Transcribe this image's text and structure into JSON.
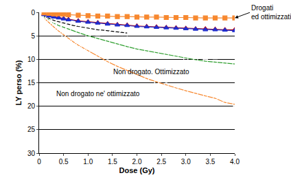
{
  "chart_data": {
    "type": "line",
    "x_label": "Dose (Gy)",
    "y_label": "LY perso (%)",
    "xlim": [
      0,
      4
    ],
    "xticks": [
      0,
      0.5,
      {
        "value": 1,
        "label": "1.0"
      },
      1.5,
      {
        "value": 2,
        "label": "2.0"
      },
      2.5,
      {
        "value": 3,
        "label": "3.0"
      },
      3.5,
      {
        "value": 4,
        "label": "4.0"
      }
    ],
    "ylim": [
      30,
      0
    ],
    "yticks": [
      0,
      5,
      10,
      15,
      20,
      25,
      30
    ],
    "grid": true,
    "series": [
      {
        "color": "#2e9e2e",
        "marker": "square-open",
        "line_style": "solid",
        "x": [
          0.1,
          0.2,
          0.3,
          0.4,
          0.5,
          0.6,
          0.8,
          1.0,
          1.2,
          1.4,
          1.6,
          1.8,
          2.0,
          2.2,
          2.4,
          2.6,
          2.8,
          3.0,
          3.2,
          3.4,
          3.6,
          3.8,
          4.0
        ],
        "values": [
          1.0,
          1.7,
          2.3,
          2.8,
          3.2,
          3.6,
          4.3,
          5.0,
          5.6,
          6.2,
          6.8,
          7.3,
          7.8,
          8.2,
          8.6,
          9.0,
          9.4,
          9.8,
          10.1,
          10.4,
          10.6,
          10.8,
          11.0
        ]
      },
      {
        "color": "#f7882f",
        "marker": "circle-open",
        "line_style": "solid",
        "x": [
          0.1,
          0.2,
          0.3,
          0.4,
          0.5,
          0.6,
          0.7,
          0.8,
          0.9,
          1.0,
          1.2,
          1.4,
          1.6,
          1.8,
          2.0,
          2.2,
          2.4,
          2.6,
          2.8,
          3.0,
          3.2,
          3.4,
          3.6,
          3.8,
          4.0
        ],
        "values": [
          1.2,
          2.2,
          3.1,
          4.0,
          4.8,
          5.6,
          6.3,
          7.0,
          7.6,
          8.2,
          9.4,
          10.5,
          11.5,
          12.4,
          13.3,
          14.1,
          14.8,
          15.5,
          16.1,
          16.7,
          17.3,
          17.8,
          18.3,
          19.2,
          19.6
        ]
      },
      {
        "color": "#000000",
        "marker": "diamond-open",
        "line_style": "solid",
        "x": [
          0.1,
          0.2,
          0.3,
          0.4,
          0.5,
          0.6,
          0.7,
          0.8,
          0.9,
          1.0,
          1.1,
          1.2,
          1.3,
          1.4,
          1.5,
          1.6,
          1.7,
          1.8
        ],
        "values": [
          0.8,
          1.3,
          1.7,
          2.0,
          2.3,
          2.6,
          2.8,
          3.0,
          3.2,
          3.4,
          3.5,
          3.7,
          3.8,
          3.9,
          4.1,
          4.2,
          4.3,
          4.4
        ]
      },
      {
        "color": "#c00000",
        "marker": "triangle-up",
        "line_style": "solid",
        "x": [
          0.1,
          0.2,
          0.3,
          0.4,
          0.5,
          0.6,
          0.8,
          1.0,
          1.2,
          1.4,
          1.6,
          1.8,
          2.0,
          2.2,
          2.4,
          2.6,
          2.8,
          3.0,
          3.2,
          3.4,
          3.6,
          3.8,
          4.0
        ],
        "values": [
          0.4,
          0.7,
          0.9,
          1.1,
          1.3,
          1.5,
          1.8,
          2.0,
          2.2,
          2.4,
          2.6,
          2.7,
          2.9,
          3.0,
          3.1,
          3.2,
          3.3,
          3.4,
          3.5,
          3.5,
          3.6,
          3.7,
          3.7
        ]
      },
      {
        "color": "#1f2fd0",
        "marker": "triangle-up",
        "line_style": "solid",
        "x": [
          0.1,
          0.2,
          0.3,
          0.4,
          0.5,
          0.6,
          0.8,
          1.0,
          1.2,
          1.4,
          1.6,
          1.8,
          2.0,
          2.2,
          2.4,
          2.6,
          2.8,
          3.0,
          3.2,
          3.4,
          3.6,
          3.8,
          4.0
        ],
        "values": [
          0.5,
          0.8,
          1.0,
          1.2,
          1.4,
          1.6,
          1.9,
          2.1,
          2.3,
          2.5,
          2.7,
          2.8,
          3.0,
          3.1,
          3.2,
          3.3,
          3.4,
          3.5,
          3.6,
          3.7,
          3.7,
          3.8,
          3.9
        ]
      },
      {
        "color": "#f7882f",
        "marker": "square",
        "line_style": "solid",
        "x": [
          0.1,
          0.2,
          0.3,
          0.4,
          0.5,
          0.6,
          0.8,
          1.0,
          1.2,
          1.4,
          1.6,
          1.8,
          2.0,
          2.2,
          2.4,
          2.6,
          2.8,
          3.0,
          3.2,
          3.4,
          3.6,
          3.8,
          4.0
        ],
        "values": [
          0.1,
          0.2,
          0.3,
          0.3,
          0.4,
          0.5,
          0.6,
          0.7,
          0.8,
          0.8,
          0.9,
          0.9,
          1.0,
          1.0,
          1.0,
          1.1,
          1.1,
          1.1,
          1.2,
          1.2,
          1.2,
          1.2,
          1.2
        ]
      }
    ],
    "annotations": [
      {
        "text": "Drogati\ned ottimizzati",
        "x": 4,
        "y": 1.2,
        "arrow": true
      },
      {
        "text": "Non drogato. Ottimizzato",
        "x": 2.3,
        "y": 12.6
      },
      {
        "text": "Non drogato ne' ottimizzato",
        "x": 1.2,
        "y": 17.3
      }
    ]
  }
}
